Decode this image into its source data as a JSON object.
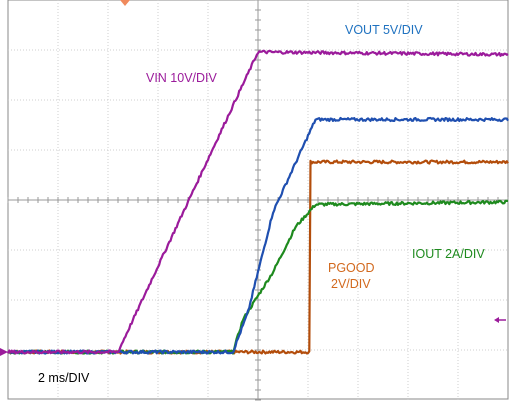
{
  "chart_data": {
    "type": "line",
    "title": "",
    "timebase_label": "2 ms/DIV",
    "x_unit": "ms",
    "xlim": [
      0,
      20
    ],
    "divisions": {
      "horizontal": 10,
      "vertical": 8
    },
    "grid": true,
    "series": [
      {
        "name": "VIN",
        "label": "VIN 10V/DIV",
        "color": "#9b1b9b",
        "points": [
          [
            0,
            0
          ],
          [
            4.4,
            0
          ],
          [
            10.0,
            6.0
          ],
          [
            20,
            5.95
          ]
        ]
      },
      {
        "name": "VOUT",
        "label": "VOUT 5V/DIV",
        "color": "#1f4fb0",
        "points": [
          [
            0,
            0
          ],
          [
            9.0,
            0
          ],
          [
            9.6,
            0.8
          ],
          [
            10.6,
            2.8
          ],
          [
            12.3,
            4.65
          ],
          [
            20,
            4.65
          ]
        ]
      },
      {
        "name": "IOUT",
        "label": "IOUT 2A/DIV",
        "color": "#1e8a1e",
        "points": [
          [
            0,
            0
          ],
          [
            9.0,
            0
          ],
          [
            9.4,
            0.65
          ],
          [
            10.6,
            1.6
          ],
          [
            11.5,
            2.5
          ],
          [
            12.3,
            2.95
          ],
          [
            20,
            3.0
          ]
        ]
      },
      {
        "name": "PGOOD",
        "label_line1": "PGOOD",
        "label_line2": "2V/DIV",
        "color": "#b34d0b",
        "points": [
          [
            0,
            0
          ],
          [
            12.05,
            0
          ],
          [
            12.1,
            3.8
          ],
          [
            20,
            3.8
          ]
        ]
      }
    ]
  },
  "labels_color": {
    "vin": "#9b1b9b",
    "vout": "#1f72c0",
    "iout": "#1e8a1e",
    "pgood": "#d2691e",
    "timebase": "#000000"
  }
}
